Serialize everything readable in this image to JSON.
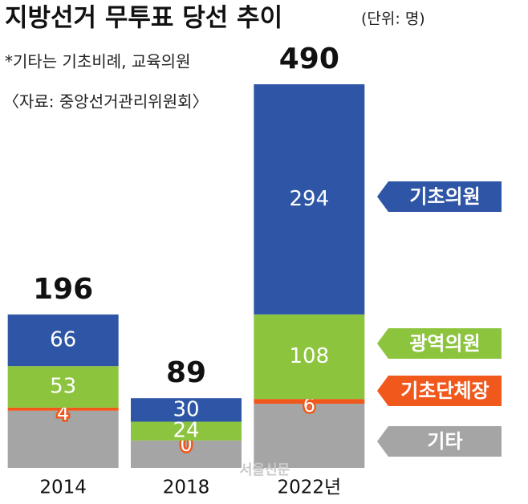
{
  "chart_data": {
    "type": "stacked_bar",
    "title": "지방선거 무투표 당선 추이",
    "unit": "(단위: 명)",
    "note": "*기타는 기초비례, 교육의원",
    "source": "〈자료: 중앙선거관리위원회〉",
    "watermark": "서울신문",
    "categories": [
      "2014",
      "2018",
      "2022년"
    ],
    "totals": [
      196,
      89,
      490
    ],
    "ylim": [
      0,
      490
    ],
    "series": [
      {
        "name": "기타",
        "color": "#a5a5a5",
        "values": [
          73,
          35,
          82
        ]
      },
      {
        "name": "기초단체장",
        "color": "#f0581c",
        "values": [
          4,
          0,
          6
        ]
      },
      {
        "name": "광역의원",
        "color": "#8cc43e",
        "values": [
          53,
          24,
          108
        ]
      },
      {
        "name": "기초의원",
        "color": "#2f56a6",
        "values": [
          66,
          30,
          294
        ]
      }
    ]
  }
}
